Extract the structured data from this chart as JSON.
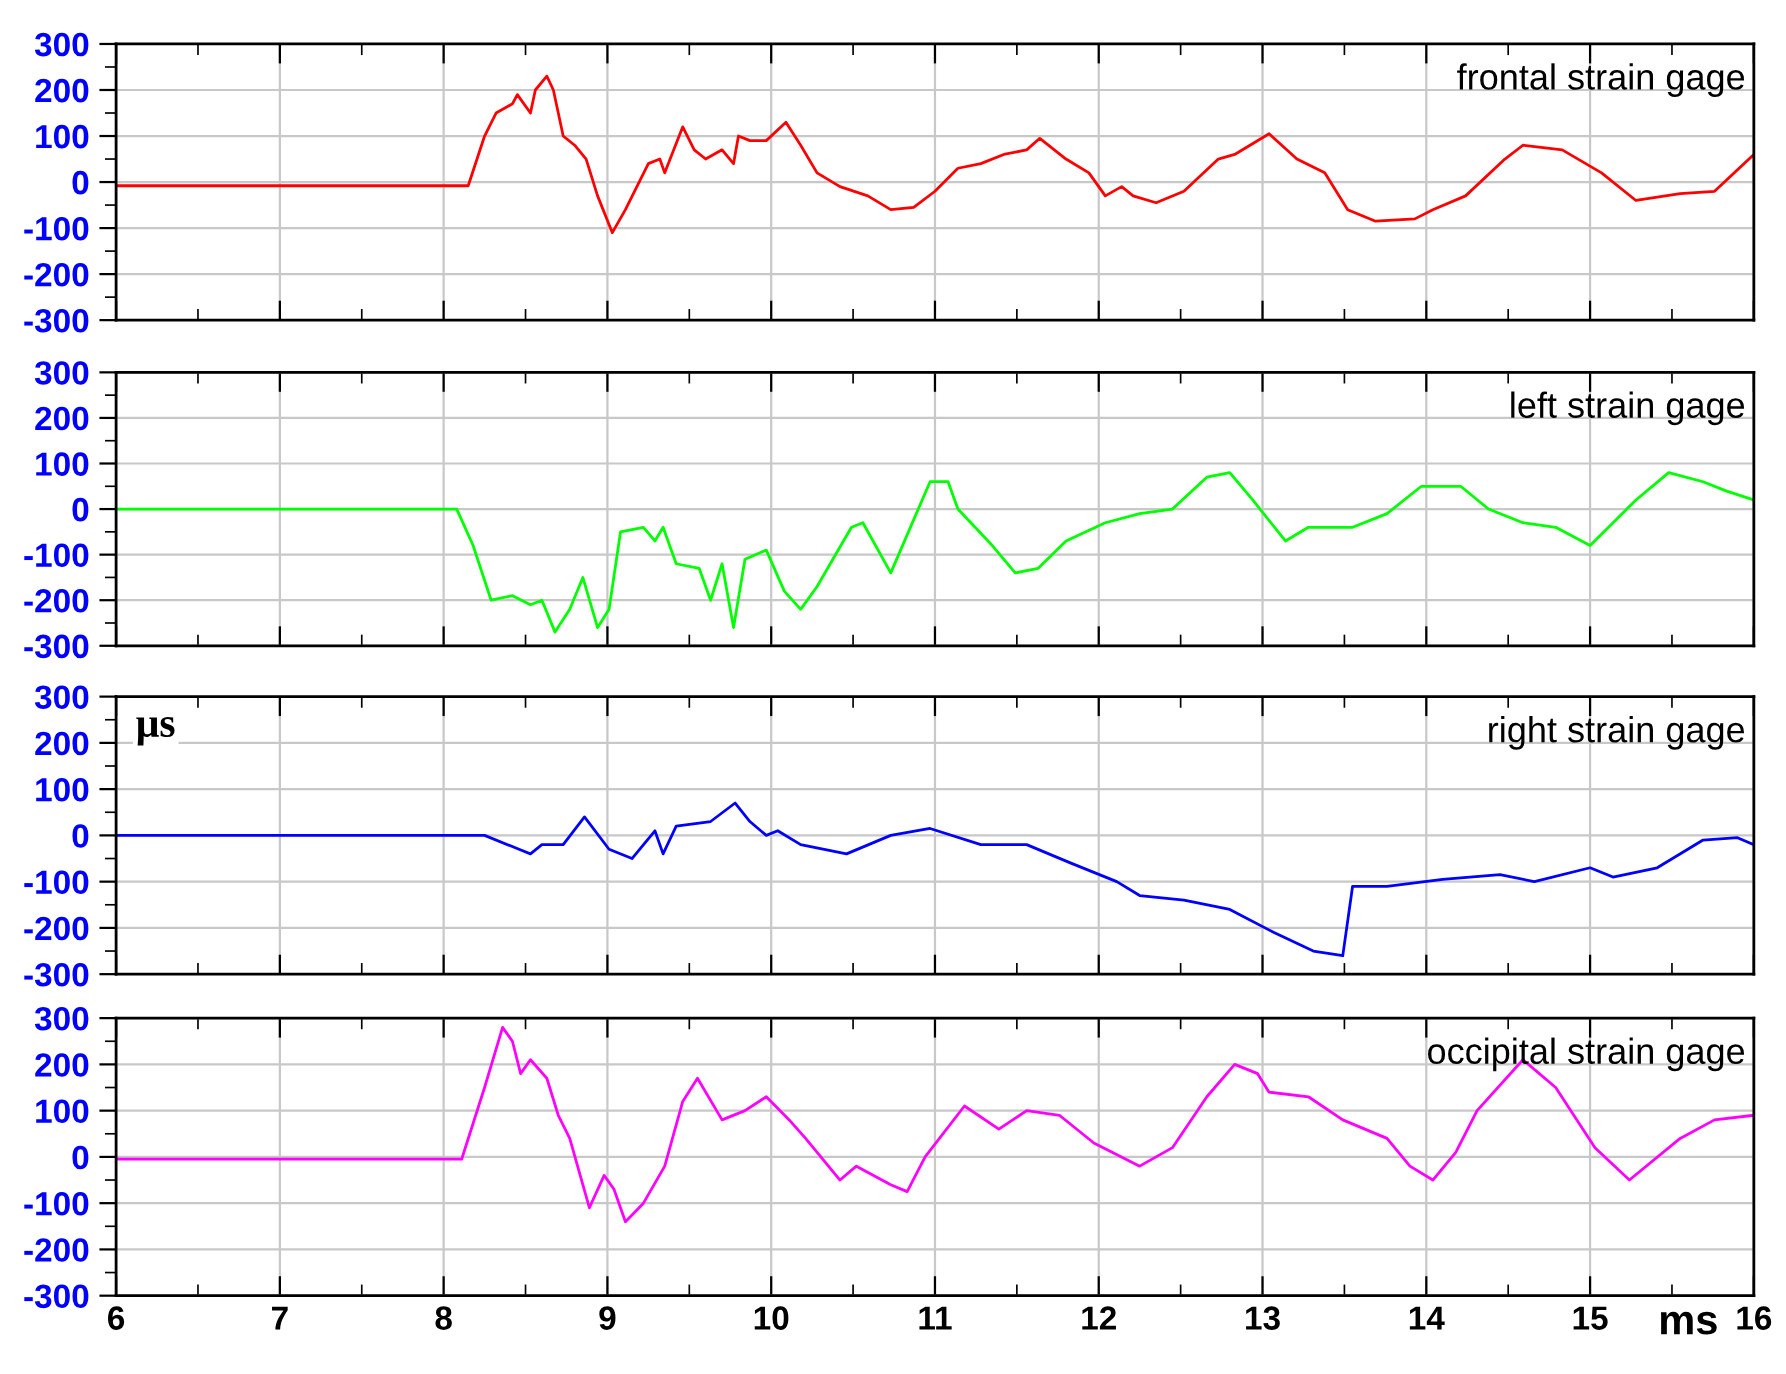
{
  "chart_data": [
    {
      "type": "line",
      "xlim": [
        6,
        16
      ],
      "xticks": [
        6,
        7,
        8,
        9,
        10,
        11,
        12,
        13,
        14,
        15,
        16
      ],
      "ylim": [
        -300,
        300
      ],
      "yticks": [
        -300,
        -200,
        -100,
        0,
        100,
        200,
        300
      ],
      "grid": true,
      "tick_labels": "y",
      "x": [
        6,
        7,
        8,
        8.15,
        8.25,
        8.32,
        8.42,
        8.45,
        8.53,
        8.56,
        8.63,
        8.67,
        8.73,
        8.8,
        8.87,
        8.94,
        9.03,
        9.11,
        9.25,
        9.32,
        9.35,
        9.46,
        9.53,
        9.6,
        9.7,
        9.77,
        9.8,
        9.87,
        9.97,
        10.09,
        10.18,
        10.28,
        10.42,
        10.59,
        10.73,
        10.87,
        11.0,
        11.14,
        11.28,
        11.42,
        11.56,
        11.64,
        11.8,
        11.94,
        12.04,
        12.14,
        12.21,
        12.35,
        12.52,
        12.73,
        12.83,
        13.04,
        13.21,
        13.38,
        13.52,
        13.69,
        13.93,
        14.04,
        14.24,
        14.48,
        14.59,
        14.83,
        15.07,
        15.28,
        15.55,
        15.76,
        16
      ],
      "series": [
        {
          "name": "frontal strain gage",
          "color": "#ff0000",
          "values": [
            -8,
            -8,
            -8,
            -8,
            100,
            150,
            170,
            190,
            150,
            200,
            230,
            200,
            100,
            80,
            50,
            -30,
            -110,
            -60,
            40,
            50,
            20,
            120,
            70,
            50,
            70,
            40,
            100,
            90,
            90,
            130,
            80,
            20,
            -10,
            -30,
            -60,
            -55,
            -20,
            30,
            40,
            60,
            70,
            95,
            50,
            20,
            -30,
            -10,
            -30,
            -45,
            -20,
            50,
            60,
            105,
            50,
            20,
            -60,
            -85,
            -80,
            -60,
            -30,
            50,
            80,
            70,
            20,
            -40,
            -25,
            -20,
            60
          ]
        }
      ]
    },
    {
      "type": "line",
      "xlim": [
        6,
        16
      ],
      "xticks": [
        6,
        7,
        8,
        9,
        10,
        11,
        12,
        13,
        14,
        15,
        16
      ],
      "ylim": [
        -300,
        300
      ],
      "yticks": [
        -300,
        -200,
        -100,
        0,
        100,
        200,
        300
      ],
      "grid": true,
      "tick_labels": "y",
      "x": [
        6,
        7,
        8,
        8.08,
        8.18,
        8.29,
        8.42,
        8.53,
        8.6,
        8.68,
        8.77,
        8.85,
        8.94,
        9.01,
        9.08,
        9.22,
        9.29,
        9.34,
        9.42,
        9.56,
        9.63,
        9.7,
        9.77,
        9.84,
        9.97,
        10.08,
        10.18,
        10.28,
        10.49,
        10.56,
        10.73,
        10.97,
        11.08,
        11.14,
        11.35,
        11.49,
        11.63,
        11.8,
        12.04,
        12.25,
        12.45,
        12.66,
        12.8,
        12.94,
        13.14,
        13.28,
        13.55,
        13.76,
        13.97,
        14.21,
        14.38,
        14.59,
        14.79,
        15.0,
        15.28,
        15.48,
        15.69,
        15.83,
        16
      ],
      "series": [
        {
          "name": "left strain gage",
          "color": "#00ff00",
          "values": [
            0,
            0,
            0,
            0,
            -80,
            -200,
            -190,
            -210,
            -200,
            -270,
            -220,
            -150,
            -260,
            -220,
            -50,
            -40,
            -70,
            -40,
            -120,
            -130,
            -200,
            -120,
            -260,
            -110,
            -90,
            -180,
            -220,
            -170,
            -40,
            -30,
            -140,
            60,
            60,
            0,
            -80,
            -140,
            -130,
            -70,
            -30,
            -10,
            0,
            70,
            80,
            20,
            -70,
            -40,
            -40,
            -10,
            50,
            50,
            0,
            -30,
            -40,
            -80,
            20,
            80,
            60,
            40,
            20
          ]
        }
      ]
    },
    {
      "type": "line",
      "xlim": [
        6,
        16
      ],
      "xticks": [
        6,
        7,
        8,
        9,
        10,
        11,
        12,
        13,
        14,
        15,
        16
      ],
      "ylim": [
        -300,
        300
      ],
      "yticks": [
        -300,
        -200,
        -100,
        0,
        100,
        200,
        300
      ],
      "grid": true,
      "tick_labels": "y",
      "ylabel": "μs",
      "x": [
        6,
        7,
        8,
        8.25,
        8.46,
        8.53,
        8.6,
        8.73,
        8.86,
        9.01,
        9.15,
        9.29,
        9.34,
        9.42,
        9.63,
        9.78,
        9.87,
        9.97,
        10.04,
        10.18,
        10.46,
        10.73,
        10.97,
        11.28,
        11.56,
        11.83,
        12.11,
        12.25,
        12.52,
        12.8,
        13.07,
        13.31,
        13.49,
        13.55,
        13.76,
        14.1,
        14.45,
        14.66,
        15.0,
        15.14,
        15.41,
        15.69,
        15.9,
        16
      ],
      "series": [
        {
          "name": "right strain gage",
          "color": "#0000ff",
          "values": [
            0,
            0,
            0,
            0,
            -30,
            -40,
            -20,
            -20,
            40,
            -30,
            -50,
            10,
            -40,
            20,
            30,
            70,
            30,
            0,
            10,
            -20,
            -40,
            0,
            15,
            -20,
            -20,
            -60,
            -100,
            -130,
            -140,
            -160,
            -210,
            -250,
            -260,
            -110,
            -110,
            -95,
            -85,
            -100,
            -70,
            -90,
            -70,
            -10,
            -5,
            -20
          ]
        }
      ]
    },
    {
      "type": "line",
      "xlim": [
        6,
        16
      ],
      "xticks": [
        6,
        7,
        8,
        9,
        10,
        11,
        12,
        13,
        14,
        15,
        16
      ],
      "ylim": [
        -300,
        300
      ],
      "yticks": [
        -300,
        -200,
        -100,
        0,
        100,
        200,
        300
      ],
      "grid": true,
      "xlabel": "ms",
      "x": [
        6,
        7,
        8,
        8.11,
        8.25,
        8.36,
        8.42,
        8.47,
        8.53,
        8.63,
        8.7,
        8.77,
        8.89,
        8.98,
        9.04,
        9.11,
        9.22,
        9.35,
        9.46,
        9.55,
        9.7,
        9.84,
        9.97,
        10.11,
        10.21,
        10.42,
        10.52,
        10.73,
        10.83,
        10.94,
        11.18,
        11.39,
        11.56,
        11.76,
        11.97,
        12.25,
        12.45,
        12.66,
        12.83,
        12.97,
        13.04,
        13.28,
        13.49,
        13.76,
        13.9,
        14.04,
        14.18,
        14.31,
        14.59,
        14.79,
        15.03,
        15.24,
        15.55,
        15.76,
        16
      ],
      "series": [
        {
          "name": "occipital strain gage",
          "color": "#ff00ff",
          "values": [
            -5,
            -5,
            -5,
            -5,
            150,
            280,
            250,
            180,
            210,
            170,
            90,
            40,
            -110,
            -40,
            -70,
            -140,
            -100,
            -20,
            120,
            170,
            80,
            100,
            130,
            80,
            40,
            -50,
            -20,
            -60,
            -75,
            0,
            110,
            60,
            100,
            90,
            30,
            -20,
            20,
            130,
            200,
            180,
            140,
            130,
            80,
            40,
            -20,
            -50,
            10,
            100,
            210,
            150,
            20,
            -50,
            40,
            80,
            90
          ]
        }
      ]
    }
  ]
}
